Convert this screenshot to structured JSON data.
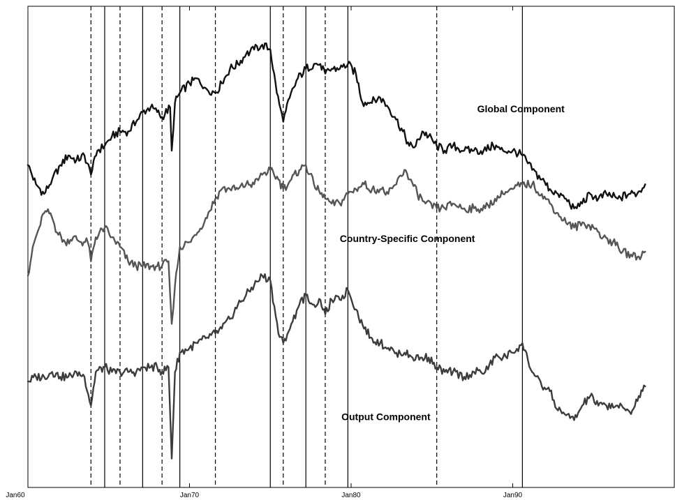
{
  "chart_data": {
    "type": "line",
    "x_unit": "date",
    "xlim": [
      "1960-01",
      "1999-12"
    ],
    "x_ticks": [
      {
        "label": "Jan60",
        "year": 1960
      },
      {
        "label": "Jan70",
        "year": 1970
      },
      {
        "label": "Jan80",
        "year": 1980
      },
      {
        "label": "Jan90",
        "year": 1990
      }
    ],
    "y_axis": {
      "tick_labels_shown": false,
      "ylim": [
        0,
        100
      ]
    },
    "grid": false,
    "legend": "none",
    "vertical_lines": {
      "solid": [
        1964.75,
        1967.1,
        1969.4,
        1975.0,
        1977.2,
        1979.8,
        1990.6
      ],
      "dashed": [
        1963.9,
        1965.7,
        1968.3,
        1971.6,
        1975.8,
        1978.4,
        1985.3
      ]
    },
    "series": [
      {
        "name": "Global Component",
        "color": "#111111",
        "points": [
          [
            1960.0,
            67
          ],
          [
            1960.5,
            63
          ],
          [
            1961.0,
            61
          ],
          [
            1961.5,
            64
          ],
          [
            1962.0,
            67
          ],
          [
            1962.5,
            69
          ],
          [
            1963.0,
            68
          ],
          [
            1963.5,
            69
          ],
          [
            1963.9,
            65
          ],
          [
            1964.3,
            70
          ],
          [
            1964.75,
            71
          ],
          [
            1965.2,
            73
          ],
          [
            1965.7,
            74
          ],
          [
            1966.2,
            74
          ],
          [
            1966.7,
            76
          ],
          [
            1967.1,
            78
          ],
          [
            1967.6,
            79
          ],
          [
            1968.0,
            78
          ],
          [
            1968.3,
            77
          ],
          [
            1968.8,
            79
          ],
          [
            1968.9,
            70
          ],
          [
            1969.1,
            80
          ],
          [
            1969.4,
            82
          ],
          [
            1970.0,
            84
          ],
          [
            1970.5,
            85
          ],
          [
            1971.0,
            83
          ],
          [
            1971.6,
            82
          ],
          [
            1972.0,
            84
          ],
          [
            1972.5,
            87
          ],
          [
            1973.0,
            88
          ],
          [
            1973.5,
            90
          ],
          [
            1974.0,
            91
          ],
          [
            1974.5,
            92
          ],
          [
            1975.0,
            91
          ],
          [
            1975.4,
            82
          ],
          [
            1975.8,
            76
          ],
          [
            1976.2,
            81
          ],
          [
            1976.7,
            85
          ],
          [
            1977.2,
            87
          ],
          [
            1977.7,
            88
          ],
          [
            1978.1,
            88
          ],
          [
            1978.4,
            86
          ],
          [
            1978.8,
            87
          ],
          [
            1979.3,
            87
          ],
          [
            1979.8,
            88
          ],
          [
            1980.3,
            86
          ],
          [
            1980.7,
            80
          ],
          [
            1981.2,
            80
          ],
          [
            1981.8,
            81
          ],
          [
            1982.3,
            79
          ],
          [
            1982.7,
            77
          ],
          [
            1983.2,
            74
          ],
          [
            1983.6,
            71
          ],
          [
            1984.0,
            71
          ],
          [
            1984.4,
            74
          ],
          [
            1984.8,
            73
          ],
          [
            1985.3,
            71
          ],
          [
            1985.8,
            70
          ],
          [
            1986.3,
            71
          ],
          [
            1987.0,
            70
          ],
          [
            1987.6,
            70
          ],
          [
            1988.2,
            70
          ],
          [
            1988.8,
            71
          ],
          [
            1989.4,
            70
          ],
          [
            1990.0,
            70
          ],
          [
            1990.6,
            69
          ],
          [
            1991.2,
            66
          ],
          [
            1991.8,
            64
          ],
          [
            1992.3,
            62
          ],
          [
            1992.8,
            61
          ],
          [
            1993.3,
            60
          ],
          [
            1993.8,
            58
          ],
          [
            1994.3,
            59
          ],
          [
            1994.8,
            61
          ],
          [
            1995.3,
            60
          ],
          [
            1995.8,
            61
          ],
          [
            1996.5,
            60
          ],
          [
            1997.2,
            61
          ],
          [
            1997.7,
            61
          ],
          [
            1998.2,
            63
          ]
        ]
      },
      {
        "name": "Country-Specific Component",
        "color": "#555555",
        "points": [
          [
            1960.0,
            44
          ],
          [
            1960.3,
            50
          ],
          [
            1960.7,
            54
          ],
          [
            1961.0,
            57
          ],
          [
            1961.4,
            57
          ],
          [
            1961.8,
            53
          ],
          [
            1962.3,
            51
          ],
          [
            1962.8,
            52
          ],
          [
            1963.3,
            51
          ],
          [
            1963.7,
            51
          ],
          [
            1963.9,
            47
          ],
          [
            1964.2,
            52
          ],
          [
            1964.75,
            54
          ],
          [
            1965.2,
            52
          ],
          [
            1965.7,
            50
          ],
          [
            1966.2,
            47
          ],
          [
            1966.7,
            46
          ],
          [
            1967.1,
            46
          ],
          [
            1967.6,
            46
          ],
          [
            1968.0,
            46
          ],
          [
            1968.3,
            46
          ],
          [
            1968.7,
            47
          ],
          [
            1968.9,
            34
          ],
          [
            1969.1,
            42
          ],
          [
            1969.4,
            50
          ],
          [
            1970.0,
            51
          ],
          [
            1970.5,
            53
          ],
          [
            1971.0,
            56
          ],
          [
            1971.6,
            60
          ],
          [
            1972.0,
            62
          ],
          [
            1972.5,
            62
          ],
          [
            1973.0,
            62
          ],
          [
            1973.5,
            63
          ],
          [
            1974.0,
            63
          ],
          [
            1974.5,
            65
          ],
          [
            1975.0,
            66
          ],
          [
            1975.5,
            64
          ],
          [
            1975.8,
            62
          ],
          [
            1976.3,
            64
          ],
          [
            1976.8,
            66
          ],
          [
            1977.2,
            67
          ],
          [
            1977.7,
            63
          ],
          [
            1978.1,
            61
          ],
          [
            1978.4,
            60
          ],
          [
            1978.8,
            59
          ],
          [
            1979.3,
            59
          ],
          [
            1979.8,
            61
          ],
          [
            1980.3,
            62
          ],
          [
            1980.8,
            63
          ],
          [
            1981.3,
            62
          ],
          [
            1981.8,
            62
          ],
          [
            1982.3,
            61
          ],
          [
            1982.8,
            63
          ],
          [
            1983.3,
            66
          ],
          [
            1983.7,
            64
          ],
          [
            1984.1,
            61
          ],
          [
            1984.6,
            59
          ],
          [
            1985.3,
            58
          ],
          [
            1985.8,
            58
          ],
          [
            1986.3,
            59
          ],
          [
            1987.0,
            58
          ],
          [
            1987.6,
            58
          ],
          [
            1988.3,
            58
          ],
          [
            1988.9,
            60
          ],
          [
            1989.4,
            61
          ],
          [
            1990.0,
            62
          ],
          [
            1990.6,
            63
          ],
          [
            1991.2,
            63
          ],
          [
            1991.8,
            61
          ],
          [
            1992.3,
            59
          ],
          [
            1992.8,
            57
          ],
          [
            1993.3,
            55
          ],
          [
            1993.8,
            54
          ],
          [
            1994.4,
            55
          ],
          [
            1995.0,
            54
          ],
          [
            1995.6,
            52
          ],
          [
            1996.2,
            51
          ],
          [
            1996.8,
            49
          ],
          [
            1997.4,
            48
          ],
          [
            1997.8,
            48
          ],
          [
            1998.2,
            49
          ]
        ]
      },
      {
        "name": "Output Component",
        "color": "#3c3c3c",
        "points": [
          [
            1960.0,
            22
          ],
          [
            1960.5,
            23
          ],
          [
            1961.0,
            23
          ],
          [
            1961.5,
            24
          ],
          [
            1962.0,
            23
          ],
          [
            1962.5,
            23
          ],
          [
            1963.0,
            24
          ],
          [
            1963.5,
            23
          ],
          [
            1963.9,
            17
          ],
          [
            1964.2,
            24
          ],
          [
            1964.75,
            25
          ],
          [
            1965.2,
            24
          ],
          [
            1965.7,
            24
          ],
          [
            1966.2,
            24
          ],
          [
            1966.7,
            24
          ],
          [
            1967.1,
            25
          ],
          [
            1967.6,
            25
          ],
          [
            1968.0,
            25
          ],
          [
            1968.3,
            24
          ],
          [
            1968.7,
            25
          ],
          [
            1968.9,
            6
          ],
          [
            1969.1,
            24
          ],
          [
            1969.4,
            28
          ],
          [
            1970.0,
            29
          ],
          [
            1970.5,
            30
          ],
          [
            1971.0,
            31
          ],
          [
            1971.6,
            32
          ],
          [
            1972.0,
            33
          ],
          [
            1972.5,
            35
          ],
          [
            1973.0,
            38
          ],
          [
            1973.5,
            40
          ],
          [
            1974.0,
            42
          ],
          [
            1974.5,
            44
          ],
          [
            1975.0,
            43
          ],
          [
            1975.5,
            32
          ],
          [
            1975.8,
            30
          ],
          [
            1976.3,
            34
          ],
          [
            1976.8,
            38
          ],
          [
            1977.2,
            40
          ],
          [
            1977.7,
            38
          ],
          [
            1978.1,
            39
          ],
          [
            1978.4,
            36
          ],
          [
            1978.8,
            39
          ],
          [
            1979.3,
            39
          ],
          [
            1979.8,
            41
          ],
          [
            1980.3,
            37
          ],
          [
            1980.8,
            33
          ],
          [
            1981.3,
            31
          ],
          [
            1981.8,
            30
          ],
          [
            1982.3,
            29
          ],
          [
            1982.8,
            28
          ],
          [
            1983.3,
            28
          ],
          [
            1983.8,
            27
          ],
          [
            1984.3,
            27
          ],
          [
            1984.8,
            27
          ],
          [
            1985.3,
            25
          ],
          [
            1985.8,
            24
          ],
          [
            1986.3,
            24
          ],
          [
            1987.0,
            23
          ],
          [
            1987.6,
            24
          ],
          [
            1988.3,
            24
          ],
          [
            1988.9,
            27
          ],
          [
            1989.4,
            27
          ],
          [
            1990.0,
            28
          ],
          [
            1990.6,
            30
          ],
          [
            1991.2,
            24
          ],
          [
            1991.8,
            21
          ],
          [
            1992.3,
            20
          ],
          [
            1992.8,
            16
          ],
          [
            1993.3,
            15
          ],
          [
            1993.8,
            14
          ],
          [
            1994.3,
            17
          ],
          [
            1994.8,
            19
          ],
          [
            1995.3,
            17
          ],
          [
            1995.8,
            17
          ],
          [
            1996.4,
            17
          ],
          [
            1997.0,
            16
          ],
          [
            1997.4,
            16
          ],
          [
            1997.8,
            19
          ],
          [
            1998.2,
            21
          ]
        ]
      }
    ],
    "annotations": [
      {
        "text": "Global Component",
        "series": 0,
        "anchor_year": 1987.8,
        "anchor_value": 78
      },
      {
        "text": "Country-Specific Component",
        "series": 1,
        "anchor_year": 1979.3,
        "anchor_value": 51
      },
      {
        "text": "Output Component",
        "series": 2,
        "anchor_year": 1979.4,
        "anchor_value": 14
      }
    ]
  }
}
